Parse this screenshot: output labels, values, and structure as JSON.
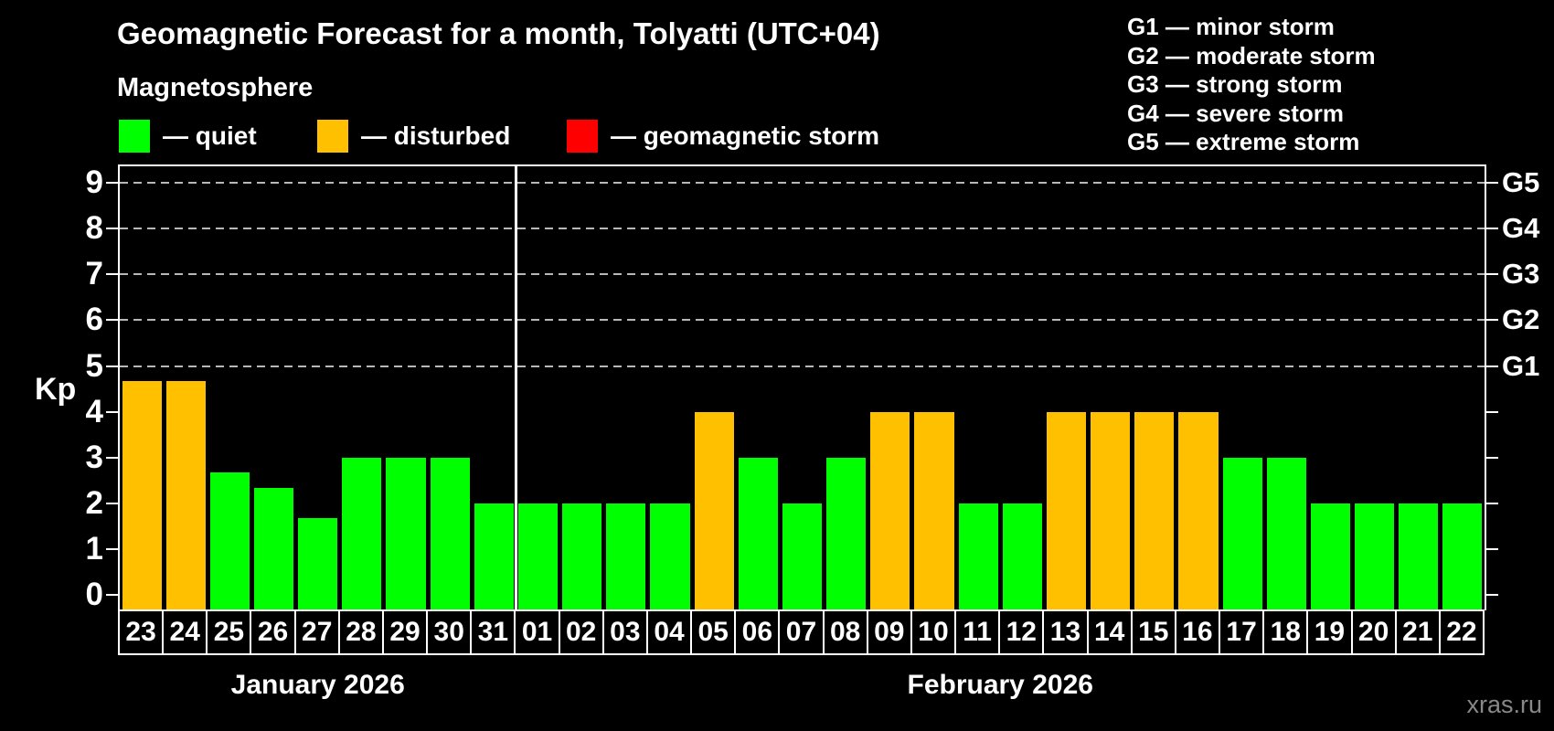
{
  "title": "Geomagnetic Forecast for a month, Tolyatti (UTC+04)",
  "subtitle": "Magnetosphere",
  "watermark": "xras.ru",
  "axis": {
    "ylabel": "Kp",
    "kp_ticks": [
      0,
      1,
      2,
      3,
      4,
      5,
      6,
      7,
      8,
      9
    ]
  },
  "legend": [
    {
      "key": "quiet",
      "label": "— quiet",
      "color": "#00ff00"
    },
    {
      "key": "disturbed",
      "label": "— disturbed",
      "color": "#ffc000"
    },
    {
      "key": "storm",
      "label": "— geomagnetic storm",
      "color": "#ff0000"
    }
  ],
  "storm_scale": [
    {
      "code": "G1",
      "label": "G1 — minor storm",
      "kp": 5
    },
    {
      "code": "G2",
      "label": "G2 — moderate storm",
      "kp": 6
    },
    {
      "code": "G3",
      "label": "G3 — strong storm",
      "kp": 7
    },
    {
      "code": "G4",
      "label": "G4 — severe storm",
      "kp": 8
    },
    {
      "code": "G5",
      "label": "G5 — extreme storm",
      "kp": 9
    }
  ],
  "chart_data": {
    "type": "bar",
    "title": "Geomagnetic Forecast for a month, Tolyatti (UTC+04)",
    "xlabel": "",
    "ylabel": "Kp",
    "ylim": [
      0,
      9
    ],
    "gridlines_at_kp": [
      5,
      6,
      7,
      8,
      9
    ],
    "legend_position": "top",
    "status_colors": {
      "quiet": "#00ff00",
      "disturbed": "#ffc000",
      "storm": "#ff0000"
    },
    "months": [
      {
        "label": "January 2026",
        "days": [
          {
            "date": "23",
            "kp": 4.67,
            "status": "disturbed"
          },
          {
            "date": "24",
            "kp": 4.67,
            "status": "disturbed"
          },
          {
            "date": "25",
            "kp": 2.67,
            "status": "quiet"
          },
          {
            "date": "26",
            "kp": 2.33,
            "status": "quiet"
          },
          {
            "date": "27",
            "kp": 1.67,
            "status": "quiet"
          },
          {
            "date": "28",
            "kp": 3,
            "status": "quiet"
          },
          {
            "date": "29",
            "kp": 3,
            "status": "quiet"
          },
          {
            "date": "30",
            "kp": 3,
            "status": "quiet"
          },
          {
            "date": "31",
            "kp": 2,
            "status": "quiet"
          }
        ]
      },
      {
        "label": "February 2026",
        "days": [
          {
            "date": "01",
            "kp": 2,
            "status": "quiet"
          },
          {
            "date": "02",
            "kp": 2,
            "status": "quiet"
          },
          {
            "date": "03",
            "kp": 2,
            "status": "quiet"
          },
          {
            "date": "04",
            "kp": 2,
            "status": "quiet"
          },
          {
            "date": "05",
            "kp": 4,
            "status": "disturbed"
          },
          {
            "date": "06",
            "kp": 3,
            "status": "quiet"
          },
          {
            "date": "07",
            "kp": 2,
            "status": "quiet"
          },
          {
            "date": "08",
            "kp": 3,
            "status": "quiet"
          },
          {
            "date": "09",
            "kp": 4,
            "status": "disturbed"
          },
          {
            "date": "10",
            "kp": 4,
            "status": "disturbed"
          },
          {
            "date": "11",
            "kp": 2,
            "status": "quiet"
          },
          {
            "date": "12",
            "kp": 2,
            "status": "quiet"
          },
          {
            "date": "13",
            "kp": 4,
            "status": "disturbed"
          },
          {
            "date": "14",
            "kp": 4,
            "status": "disturbed"
          },
          {
            "date": "15",
            "kp": 4,
            "status": "disturbed"
          },
          {
            "date": "16",
            "kp": 4,
            "status": "disturbed"
          },
          {
            "date": "17",
            "kp": 3,
            "status": "quiet"
          },
          {
            "date": "18",
            "kp": 3,
            "status": "quiet"
          },
          {
            "date": "19",
            "kp": 2,
            "status": "quiet"
          },
          {
            "date": "20",
            "kp": 2,
            "status": "quiet"
          },
          {
            "date": "21",
            "kp": 2,
            "status": "quiet"
          },
          {
            "date": "22",
            "kp": 2,
            "status": "quiet"
          }
        ]
      }
    ]
  }
}
